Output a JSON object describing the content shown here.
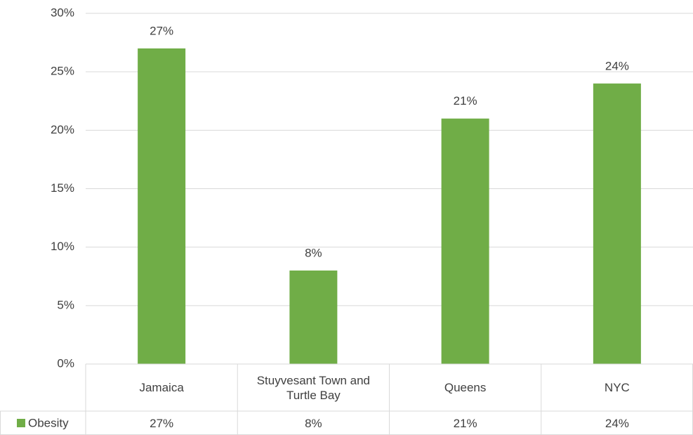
{
  "chart_data": {
    "type": "bar",
    "categories": [
      "Jamaica",
      "Stuyvesant Town and Turtle Bay",
      "Queens",
      "NYC"
    ],
    "series": [
      {
        "name": "Obesity",
        "color": "#70ad47",
        "values": [
          27,
          8,
          21,
          24
        ],
        "value_labels": [
          "27%",
          "8%",
          "21%",
          "24%"
        ]
      }
    ],
    "ylim": [
      0,
      30
    ],
    "yticks": [
      {
        "value": 0,
        "label": "0%"
      },
      {
        "value": 5,
        "label": "5%"
      },
      {
        "value": 10,
        "label": "10%"
      },
      {
        "value": 15,
        "label": "15%"
      },
      {
        "value": 20,
        "label": "20%"
      },
      {
        "value": 25,
        "label": "25%"
      },
      {
        "value": 30,
        "label": "30%"
      }
    ],
    "grid": true,
    "data_table": true
  }
}
